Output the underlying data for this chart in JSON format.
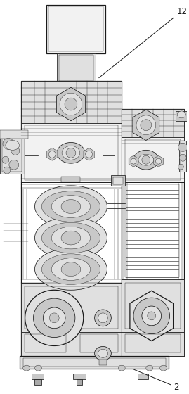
{
  "fig_width": 2.69,
  "fig_height": 5.6,
  "dpi": 100,
  "bg_color": "#ffffff",
  "lc": "#1a1a1a",
  "label_12": "12",
  "label_2": "2",
  "lw_thin": 0.3,
  "lw_med": 0.55,
  "lw_thick": 0.9,
  "fc_light": "#f2f2f2",
  "fc_mid": "#e0e0e0",
  "fc_dark": "#c8c8c8",
  "fc_darker": "#aaaaaa"
}
